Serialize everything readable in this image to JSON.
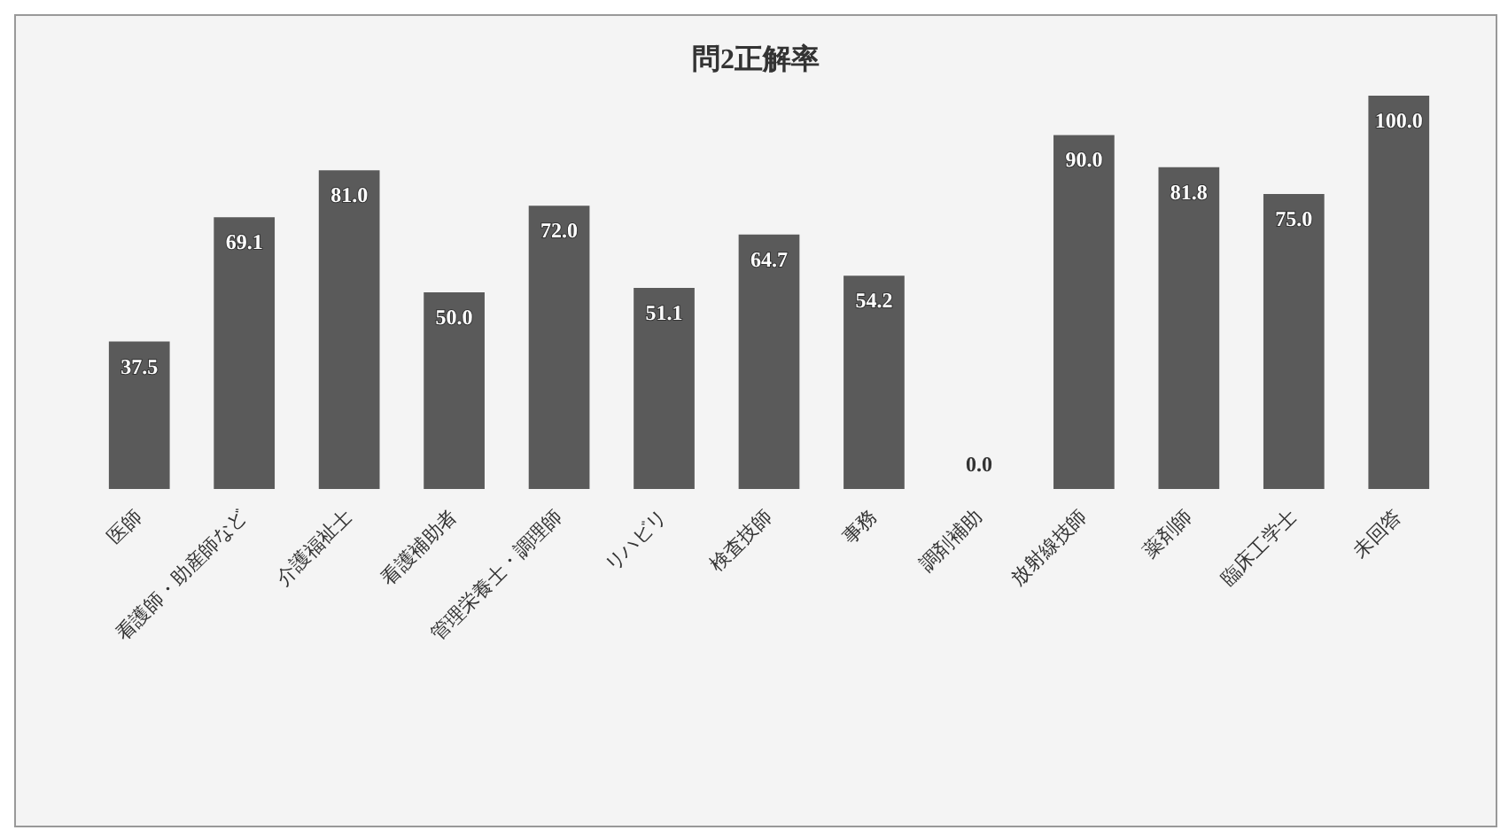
{
  "chart_data": {
    "type": "bar",
    "title": "問2正解率",
    "categories": [
      "医師",
      "看護師・助産師など",
      "介護福祉士",
      "看護補助者",
      "管理栄養士・調理師",
      "リハビリ",
      "検査技師",
      "事務",
      "調剤補助",
      "放射線技師",
      "薬剤師",
      "臨床工学士",
      "未回答"
    ],
    "values": [
      37.5,
      69.1,
      81.0,
      50.0,
      72.0,
      51.1,
      64.7,
      54.2,
      0.0,
      90.0,
      81.8,
      75.0,
      100.0
    ],
    "value_labels": [
      "37.5",
      "69.1",
      "81.0",
      "50.0",
      "72.0",
      "51.1",
      "64.7",
      "54.2",
      "0.0",
      "90.0",
      "81.8",
      "75.0",
      "100.0"
    ],
    "color": "#5a5a5a"
  }
}
